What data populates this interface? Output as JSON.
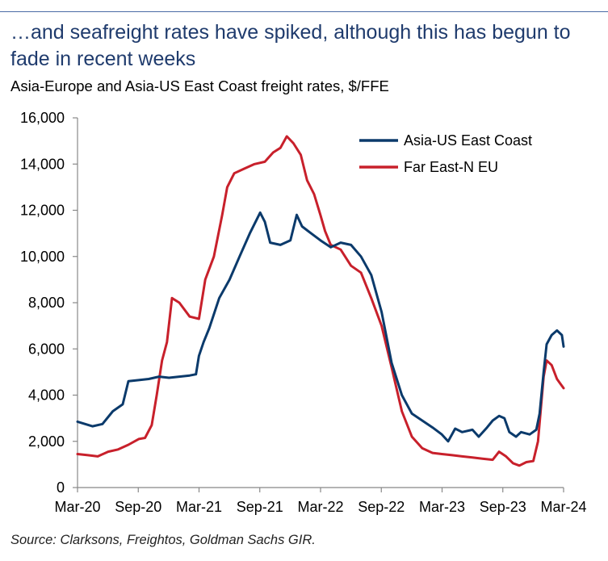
{
  "headline": "…and seafreight rates have spiked, although this has begun to fade in recent weeks",
  "chart_data": {
    "type": "line",
    "title": "Asia-Europe and Asia-US East Coast freight rates, $/FFE",
    "xlabel": "",
    "ylabel": "",
    "ylim": [
      0,
      16000
    ],
    "yticks": [
      "0",
      "2,000",
      "4,000",
      "6,000",
      "8,000",
      "10,000",
      "12,000",
      "14,000",
      "16,000"
    ],
    "xticks": [
      "Mar-20",
      "Sep-20",
      "Mar-21",
      "Sep-21",
      "Mar-22",
      "Sep-22",
      "Mar-23",
      "Sep-23",
      "Mar-24"
    ],
    "grid": false,
    "legend_position": "top-right",
    "series": [
      {
        "name": "Asia-US East Coast",
        "color": "#0b3a6b",
        "points": [
          [
            "2020-03-01",
            2850
          ],
          [
            "2020-04-15",
            2650
          ],
          [
            "2020-05-15",
            2750
          ],
          [
            "2020-06-15",
            3300
          ],
          [
            "2020-07-15",
            3600
          ],
          [
            "2020-08-01",
            4600
          ],
          [
            "2020-09-01",
            4650
          ],
          [
            "2020-10-01",
            4700
          ],
          [
            "2020-11-01",
            4800
          ],
          [
            "2020-12-01",
            4750
          ],
          [
            "2021-01-01",
            4800
          ],
          [
            "2021-02-01",
            4850
          ],
          [
            "2021-02-20",
            4900
          ],
          [
            "2021-03-01",
            5700
          ],
          [
            "2021-03-15",
            6300
          ],
          [
            "2021-04-01",
            6900
          ],
          [
            "2021-05-01",
            8200
          ],
          [
            "2021-06-01",
            9000
          ],
          [
            "2021-07-01",
            10000
          ],
          [
            "2021-08-01",
            11000
          ],
          [
            "2021-09-01",
            11900
          ],
          [
            "2021-09-15",
            11500
          ],
          [
            "2021-10-01",
            10600
          ],
          [
            "2021-11-01",
            10500
          ],
          [
            "2021-12-01",
            10700
          ],
          [
            "2021-12-20",
            11800
          ],
          [
            "2022-01-05",
            11300
          ],
          [
            "2022-02-01",
            11000
          ],
          [
            "2022-03-01",
            10700
          ],
          [
            "2022-04-01",
            10400
          ],
          [
            "2022-05-01",
            10600
          ],
          [
            "2022-06-01",
            10500
          ],
          [
            "2022-07-01",
            10000
          ],
          [
            "2022-08-01",
            9200
          ],
          [
            "2022-09-01",
            7600
          ],
          [
            "2022-10-01",
            5400
          ],
          [
            "2022-11-01",
            4000
          ],
          [
            "2022-12-01",
            3200
          ],
          [
            "2023-01-01",
            2900
          ],
          [
            "2023-02-01",
            2600
          ],
          [
            "2023-03-01",
            2300
          ],
          [
            "2023-03-20",
            2000
          ],
          [
            "2023-04-10",
            2550
          ],
          [
            "2023-05-01",
            2400
          ],
          [
            "2023-06-01",
            2500
          ],
          [
            "2023-06-20",
            2200
          ],
          [
            "2023-07-15",
            2600
          ],
          [
            "2023-08-01",
            2900
          ],
          [
            "2023-08-20",
            3100
          ],
          [
            "2023-09-05",
            3000
          ],
          [
            "2023-09-20",
            2400
          ],
          [
            "2023-10-10",
            2200
          ],
          [
            "2023-10-25",
            2400
          ],
          [
            "2023-11-20",
            2300
          ],
          [
            "2023-12-10",
            2500
          ],
          [
            "2023-12-20",
            3200
          ],
          [
            "2024-01-01",
            5000
          ],
          [
            "2024-01-10",
            6200
          ],
          [
            "2024-01-25",
            6600
          ],
          [
            "2024-02-10",
            6800
          ],
          [
            "2024-02-25",
            6600
          ],
          [
            "2024-03-01",
            6100
          ]
        ]
      },
      {
        "name": "Far East-N EU",
        "color": "#c8202b",
        "points": [
          [
            "2020-03-01",
            1450
          ],
          [
            "2020-04-01",
            1400
          ],
          [
            "2020-05-01",
            1350
          ],
          [
            "2020-06-01",
            1550
          ],
          [
            "2020-07-01",
            1650
          ],
          [
            "2020-08-01",
            1850
          ],
          [
            "2020-09-01",
            2100
          ],
          [
            "2020-09-20",
            2150
          ],
          [
            "2020-10-10",
            2700
          ],
          [
            "2020-10-25",
            4000
          ],
          [
            "2020-11-10",
            5500
          ],
          [
            "2020-11-25",
            6300
          ],
          [
            "2020-12-10",
            8200
          ],
          [
            "2021-01-01",
            8000
          ],
          [
            "2021-02-01",
            7400
          ],
          [
            "2021-03-01",
            7300
          ],
          [
            "2021-03-20",
            9000
          ],
          [
            "2021-04-15",
            10000
          ],
          [
            "2021-05-10",
            11800
          ],
          [
            "2021-05-25",
            13000
          ],
          [
            "2021-06-15",
            13600
          ],
          [
            "2021-07-15",
            13800
          ],
          [
            "2021-08-15",
            14000
          ],
          [
            "2021-09-15",
            14100
          ],
          [
            "2021-10-10",
            14500
          ],
          [
            "2021-11-01",
            14700
          ],
          [
            "2021-11-20",
            15200
          ],
          [
            "2021-12-10",
            14900
          ],
          [
            "2022-01-01",
            14400
          ],
          [
            "2022-01-20",
            13300
          ],
          [
            "2022-02-10",
            12700
          ],
          [
            "2022-03-01",
            11800
          ],
          [
            "2022-03-15",
            11100
          ],
          [
            "2022-04-01",
            10500
          ],
          [
            "2022-05-01",
            10300
          ],
          [
            "2022-06-01",
            9600
          ],
          [
            "2022-07-01",
            9300
          ],
          [
            "2022-08-01",
            8200
          ],
          [
            "2022-09-01",
            7000
          ],
          [
            "2022-10-01",
            5200
          ],
          [
            "2022-11-01",
            3300
          ],
          [
            "2022-12-01",
            2200
          ],
          [
            "2023-01-01",
            1700
          ],
          [
            "2023-02-01",
            1500
          ],
          [
            "2023-03-01",
            1450
          ],
          [
            "2023-04-01",
            1400
          ],
          [
            "2023-05-01",
            1350
          ],
          [
            "2023-06-01",
            1300
          ],
          [
            "2023-07-01",
            1250
          ],
          [
            "2023-08-01",
            1200
          ],
          [
            "2023-08-20",
            1550
          ],
          [
            "2023-09-10",
            1350
          ],
          [
            "2023-10-01",
            1050
          ],
          [
            "2023-10-20",
            950
          ],
          [
            "2023-11-10",
            1100
          ],
          [
            "2023-12-01",
            1150
          ],
          [
            "2023-12-15",
            2000
          ],
          [
            "2024-01-01",
            4800
          ],
          [
            "2024-01-10",
            5500
          ],
          [
            "2024-01-25",
            5300
          ],
          [
            "2024-02-10",
            4700
          ],
          [
            "2024-02-20",
            4500
          ],
          [
            "2024-03-01",
            4300
          ]
        ]
      }
    ]
  },
  "source": "Source: Clarksons, Freightos, Goldman Sachs GIR."
}
